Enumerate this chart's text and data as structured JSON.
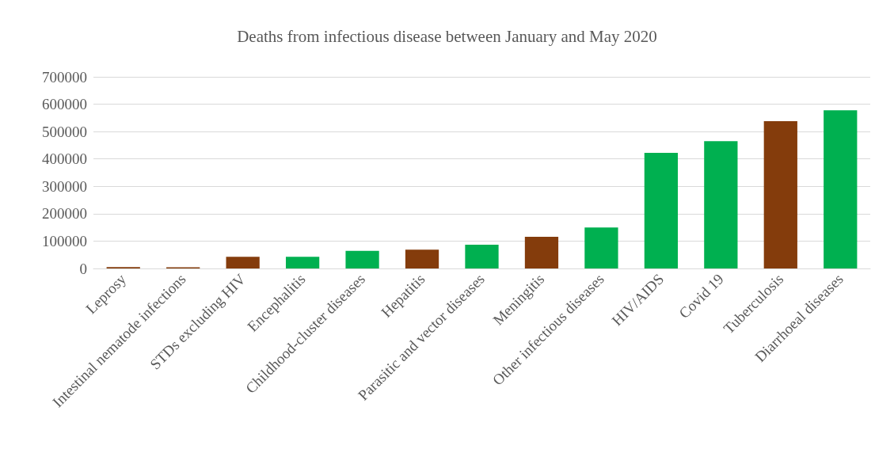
{
  "chart_data": {
    "type": "bar",
    "title": "Deaths from infectious disease between January and May 2020",
    "categories": [
      "Leprosy",
      "Intestinal nematode infections",
      "STDs excluding HIV",
      "Encephalitis",
      "Childhood-cluster diseases",
      "Hepatitis",
      "Parasitic and vector diseases",
      "Meningitis",
      "Other infectious diseases",
      "HIV/AIDS",
      "Covid 19",
      "Tuberculosis",
      "Diarrhoeal diseases"
    ],
    "values": [
      5000,
      4000,
      43000,
      43000,
      64000,
      69000,
      87000,
      116000,
      150000,
      422000,
      465000,
      538000,
      578000
    ],
    "colors": [
      "#843c0c",
      "#843c0c",
      "#843c0c",
      "#00b050",
      "#00b050",
      "#843c0c",
      "#00b050",
      "#843c0c",
      "#00b050",
      "#00b050",
      "#00b050",
      "#843c0c",
      "#00b050"
    ],
    "ylim": [
      0,
      700000
    ],
    "yticks": [
      0,
      100000,
      200000,
      300000,
      400000,
      500000,
      600000,
      700000
    ],
    "grid": "y"
  }
}
